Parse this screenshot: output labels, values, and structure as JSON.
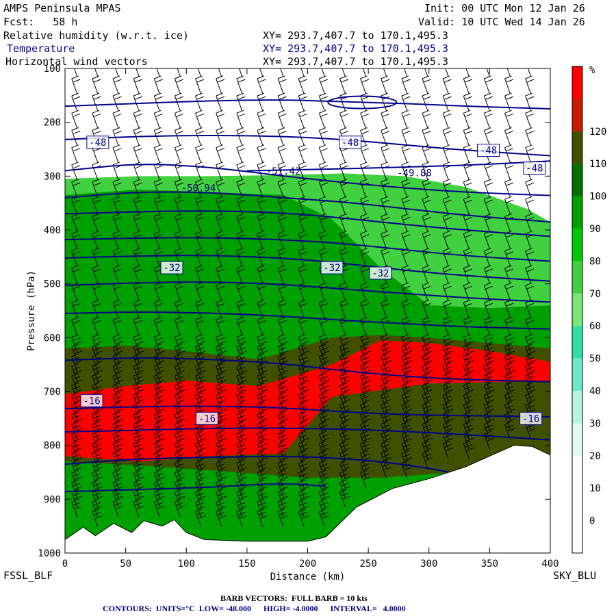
{
  "header": {
    "model": "AMPS Peninsula MPAS",
    "fcst": "Fcst:   58 h",
    "init": "Init: 00 UTC Mon 12 Jan 26",
    "valid": "Valid: 10 UTC Wed 14 Jan 26",
    "fields": [
      {
        "name": "Relative humidity (w.r.t. ice)",
        "xy": "XY= 293.7,407.7 to 170.1,495.3"
      },
      {
        "name": "Temperature",
        "xy": "XY= 293.7,407.7 to 170.1,495.3"
      },
      {
        "name": "Horizontal wind vectors",
        "xy": "XY= 293.7,407.7 to 170.1,495.3"
      }
    ]
  },
  "footer": {
    "left_endpoint": "FSSL_BLF",
    "right_endpoint": "SKY_BLU",
    "barb_note": "BARB VECTORS:  FULL BARB = 10 kts",
    "contour_note": "CONTOURS:  UNITS=°C  LOW= -48.000      HIGH= -4.0000      INTERVAL=   4.0000"
  },
  "colors": {
    "contour": "#00008b",
    "barb": "#000000",
    "terrain": "#ffffff"
  },
  "chart_data": {
    "type": "heatmap",
    "title": "Relative humidity (w.r.t. ice)",
    "xlabel": "Distance (km)",
    "ylabel": "Pressure (hPa)",
    "xlim": [
      0,
      400
    ],
    "ylim": [
      1000,
      100
    ],
    "x_ticks": [
      0,
      50,
      100,
      150,
      200,
      250,
      300,
      350,
      400
    ],
    "y_ticks": [
      100,
      200,
      300,
      400,
      500,
      600,
      700,
      800,
      900,
      1000
    ],
    "colorbar": {
      "unit": "%",
      "levels": [
        0,
        10,
        20,
        30,
        40,
        50,
        60,
        70,
        80,
        90,
        100,
        110,
        120
      ],
      "bands": [
        {
          "from": -10,
          "to": 20,
          "color": "#ffffff"
        },
        {
          "from": 20,
          "to": 30,
          "color": "#e0fff0"
        },
        {
          "from": 30,
          "to": 40,
          "color": "#b5f5e0"
        },
        {
          "from": 40,
          "to": 50,
          "color": "#70e8c8"
        },
        {
          "from": 50,
          "to": 60,
          "color": "#30dea8"
        },
        {
          "from": 60,
          "to": 70,
          "color": "#7ae67a"
        },
        {
          "from": 70,
          "to": 80,
          "color": "#40d040"
        },
        {
          "from": 80,
          "to": 90,
          "color": "#00c800"
        },
        {
          "from": 90,
          "to": 100,
          "color": "#00a000"
        },
        {
          "from": 100,
          "to": 110,
          "color": "#007000"
        },
        {
          "from": 110,
          "to": 120,
          "color": "#405000"
        },
        {
          "from": 120,
          "to": 130,
          "color": "#c81a00"
        },
        {
          "from": 130,
          "to": 140,
          "color": "#ff0000"
        }
      ]
    },
    "rh_regions": [
      {
        "level": 70,
        "top": [
          [
            0,
            305
          ],
          [
            60,
            300
          ],
          [
            120,
            300
          ],
          [
            180,
            298
          ],
          [
            230,
            295
          ],
          [
            280,
            300
          ],
          [
            330,
            320
          ],
          [
            380,
            360
          ],
          [
            400,
            385
          ]
        ],
        "bottom": 1000
      },
      {
        "level": 90,
        "top": [
          [
            0,
            335
          ],
          [
            60,
            325
          ],
          [
            120,
            330
          ],
          [
            180,
            335
          ],
          [
            220,
            380
          ],
          [
            260,
            470
          ],
          [
            300,
            540
          ],
          [
            350,
            545
          ],
          [
            400,
            540
          ]
        ],
        "bottom": 1000
      },
      {
        "level": 110,
        "top": [
          [
            0,
            620
          ],
          [
            50,
            615
          ],
          [
            100,
            625
          ],
          [
            160,
            640
          ],
          [
            220,
            600
          ],
          [
            260,
            595
          ],
          [
            300,
            600
          ],
          [
            350,
            610
          ],
          [
            400,
            620
          ]
        ],
        "bottom": [
          [
            0,
            830
          ],
          [
            80,
            840
          ],
          [
            140,
            850
          ],
          [
            200,
            860
          ],
          [
            260,
            860
          ],
          [
            320,
            850
          ],
          [
            400,
            860
          ]
        ]
      },
      {
        "level": 130,
        "top": [
          [
            0,
            705
          ],
          [
            50,
            690
          ],
          [
            100,
            680
          ],
          [
            160,
            690
          ],
          [
            220,
            650
          ],
          [
            260,
            605
          ],
          [
            300,
            610
          ],
          [
            350,
            625
          ],
          [
            400,
            645
          ]
        ],
        "bottom": [
          [
            0,
            820
          ],
          [
            60,
            830
          ],
          [
            120,
            820
          ],
          [
            180,
            815
          ],
          [
            220,
            710
          ],
          [
            300,
            685
          ],
          [
            400,
            680
          ]
        ]
      }
    ],
    "temperature_contours_degC": [
      -48,
      -44,
      -40,
      -36,
      -32,
      -28,
      -24,
      -20,
      -16,
      -12,
      -8,
      -4
    ],
    "temperature_contours": [
      {
        "value": -48,
        "points": [
          [
            0,
            170
          ],
          [
            60,
            165
          ],
          [
            120,
            160
          ],
          [
            180,
            158
          ],
          [
            230,
            162
          ],
          [
            280,
            165
          ],
          [
            330,
            170
          ],
          [
            400,
            175
          ]
        ]
      },
      {
        "value": -48,
        "points": [
          [
            0,
            232
          ],
          [
            60,
            226
          ],
          [
            120,
            224
          ],
          [
            180,
            226
          ],
          [
            230,
            232
          ],
          [
            280,
            242
          ],
          [
            330,
            252
          ],
          [
            400,
            262
          ]
        ]
      },
      {
        "value": -48,
        "points": [
          [
            150,
            290
          ],
          [
            200,
            288
          ],
          [
            250,
            285
          ],
          [
            300,
            282
          ],
          [
            350,
            278
          ],
          [
            400,
            272
          ]
        ]
      },
      {
        "value": -44,
        "points": [
          [
            0,
            290
          ],
          [
            60,
            276
          ],
          [
            120,
            283
          ],
          [
            180,
            300
          ],
          [
            230,
            312
          ],
          [
            280,
            322
          ],
          [
            330,
            330
          ],
          [
            400,
            336
          ]
        ]
      },
      {
        "value": -40,
        "points": [
          [
            0,
            340
          ],
          [
            60,
            329
          ],
          [
            120,
            330
          ],
          [
            180,
            340
          ],
          [
            230,
            348
          ],
          [
            280,
            360
          ],
          [
            330,
            373
          ],
          [
            400,
            385
          ]
        ]
      },
      {
        "value": -36,
        "points": [
          [
            0,
            370
          ],
          [
            60,
            366
          ],
          [
            120,
            364
          ],
          [
            180,
            368
          ],
          [
            230,
            378
          ],
          [
            280,
            390
          ],
          [
            330,
            400
          ],
          [
            400,
            412
          ]
        ]
      },
      {
        "value": -32,
        "points": [
          [
            0,
            418
          ],
          [
            60,
            415
          ],
          [
            120,
            414
          ],
          [
            180,
            418
          ],
          [
            230,
            425
          ],
          [
            280,
            437
          ],
          [
            330,
            448
          ],
          [
            400,
            458
          ]
        ]
      },
      {
        "value": -28,
        "points": [
          [
            0,
            452
          ],
          [
            60,
            448
          ],
          [
            120,
            447
          ],
          [
            180,
            452
          ],
          [
            230,
            462
          ],
          [
            280,
            475
          ],
          [
            330,
            485
          ],
          [
            400,
            495
          ]
        ]
      },
      {
        "value": -24,
        "points": [
          [
            0,
            503
          ],
          [
            60,
            498
          ],
          [
            120,
            496
          ],
          [
            180,
            501
          ],
          [
            230,
            510
          ],
          [
            280,
            518
          ],
          [
            330,
            526
          ],
          [
            400,
            534
          ]
        ]
      },
      {
        "value": -20,
        "points": [
          [
            0,
            555
          ],
          [
            60,
            552
          ],
          [
            120,
            554
          ],
          [
            180,
            560
          ],
          [
            230,
            568
          ],
          [
            280,
            574
          ],
          [
            330,
            580
          ],
          [
            400,
            584
          ]
        ]
      },
      {
        "value": -16,
        "points": [
          [
            0,
            642
          ],
          [
            60,
            637
          ],
          [
            120,
            640
          ],
          [
            180,
            648
          ],
          [
            230,
            662
          ],
          [
            280,
            672
          ],
          [
            330,
            678
          ],
          [
            400,
            682
          ]
        ]
      },
      {
        "value": -16,
        "points": [
          [
            0,
            732
          ],
          [
            60,
            728
          ],
          [
            120,
            727
          ],
          [
            180,
            730
          ],
          [
            230,
            738
          ],
          [
            280,
            743
          ],
          [
            330,
            745
          ],
          [
            400,
            747
          ]
        ]
      },
      {
        "value": -12,
        "points": [
          [
            0,
            775
          ],
          [
            60,
            772
          ],
          [
            120,
            768
          ],
          [
            180,
            768
          ],
          [
            230,
            770
          ],
          [
            280,
            774
          ],
          [
            330,
            780
          ],
          [
            400,
            790
          ]
        ]
      },
      {
        "value": -8,
        "points": [
          [
            0,
            835
          ],
          [
            60,
            825
          ],
          [
            120,
            822
          ],
          [
            180,
            820
          ],
          [
            230,
            824
          ],
          [
            280,
            835
          ],
          [
            330,
            855
          ],
          [
            360,
            870
          ]
        ]
      },
      {
        "value": -4,
        "points": [
          [
            0,
            886
          ],
          [
            60,
            882
          ],
          [
            120,
            878
          ],
          [
            180,
            870
          ],
          [
            215,
            876
          ]
        ]
      }
    ],
    "temperature_labels": [
      {
        "text": "-48",
        "x": 27,
        "p": 237
      },
      {
        "text": "-48",
        "x": 235,
        "p": 237
      },
      {
        "text": "-48",
        "x": 349,
        "p": 252
      },
      {
        "text": "-48",
        "x": 387,
        "p": 285
      },
      {
        "text": "-32",
        "x": 88,
        "p": 470
      },
      {
        "text": "-32",
        "x": 220,
        "p": 470
      },
      {
        "text": "-32",
        "x": 260,
        "p": 480
      },
      {
        "text": "-16",
        "x": 22,
        "p": 717
      },
      {
        "text": "-16",
        "x": 117,
        "p": 750
      },
      {
        "text": "-16",
        "x": 384,
        "p": 750
      }
    ],
    "extrema_labels": [
      {
        "text": "-50.94",
        "x": 110,
        "p": 328
      },
      {
        "text": "-51.42",
        "x": 180,
        "p": 297
      },
      {
        "text": "-49.88",
        "x": 288,
        "p": 300
      }
    ],
    "terrain_surface": [
      [
        0,
        975
      ],
      [
        15,
        952
      ],
      [
        25,
        968
      ],
      [
        40,
        945
      ],
      [
        55,
        962
      ],
      [
        65,
        940
      ],
      [
        80,
        950
      ],
      [
        90,
        938
      ],
      [
        100,
        962
      ],
      [
        115,
        975
      ],
      [
        150,
        978
      ],
      [
        200,
        978
      ],
      [
        215,
        970
      ],
      [
        240,
        915
      ],
      [
        270,
        880
      ],
      [
        300,
        862
      ],
      [
        330,
        840
      ],
      [
        355,
        815
      ],
      [
        370,
        800
      ],
      [
        385,
        802
      ],
      [
        400,
        818
      ]
    ]
  }
}
